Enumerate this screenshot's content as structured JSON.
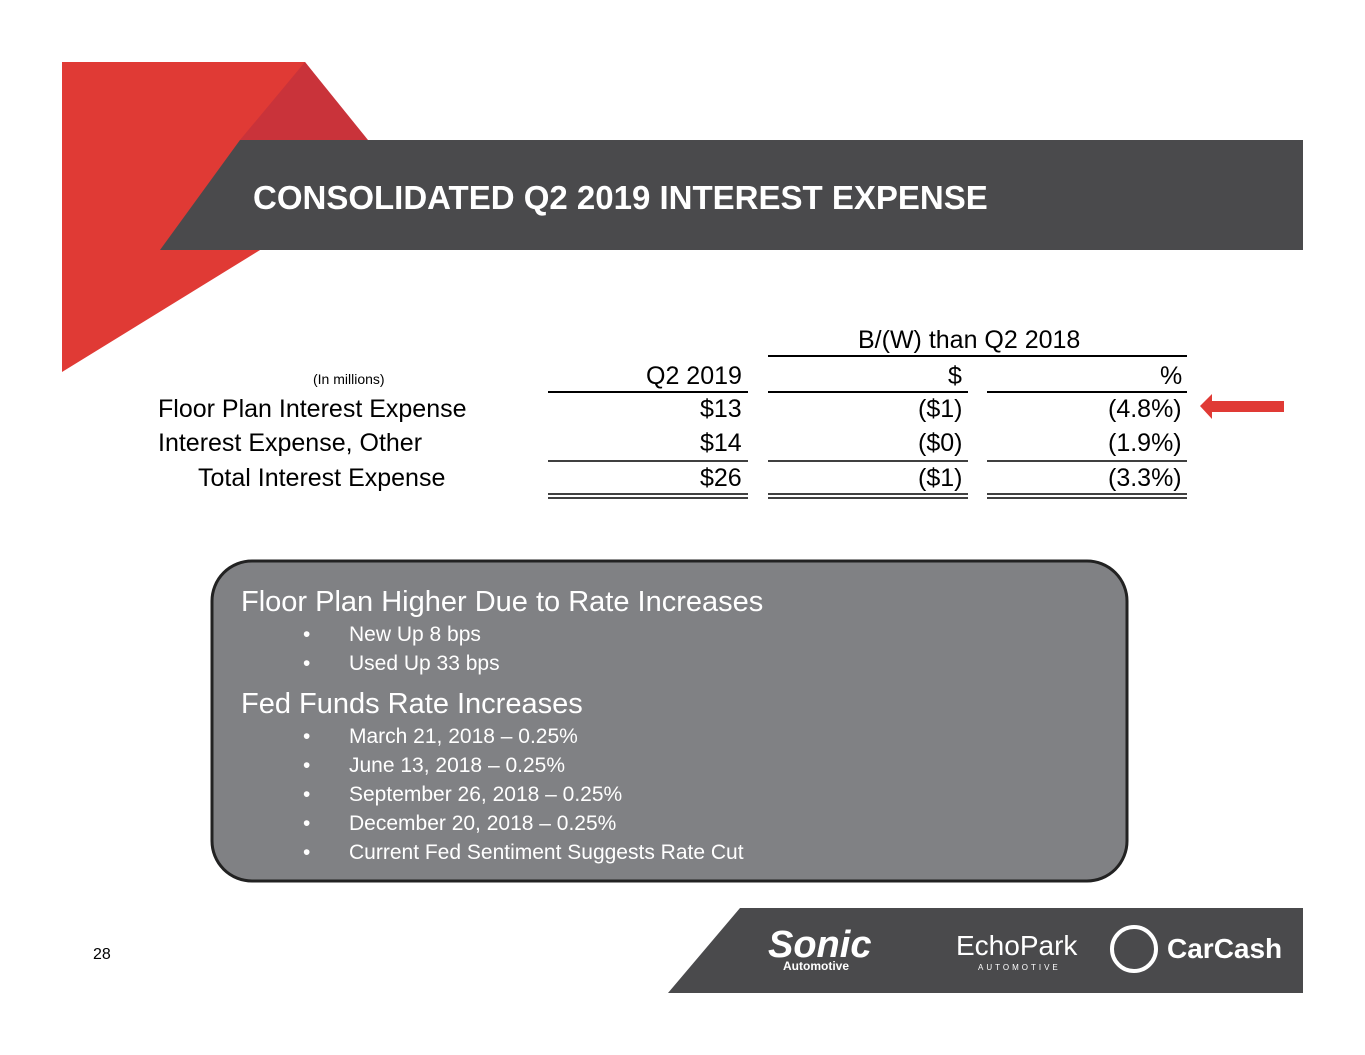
{
  "header": {
    "title": "CONSOLIDATED Q2 2019 INTEREST EXPENSE"
  },
  "table": {
    "group_header": "B/(W) than Q2 2018",
    "units": "(In millions)",
    "columns": [
      "Q2 2019",
      "$",
      "%"
    ],
    "rows": [
      [
        "Floor Plan Interest Expense",
        "$13",
        "($1)",
        "(4.8%)"
      ],
      [
        "Interest Expense, Other",
        "$14",
        "($0)",
        "(1.9%)"
      ],
      [
        "Total Interest Expense",
        "$26",
        "($1)",
        "(3.3%)"
      ]
    ]
  },
  "notes": [
    {
      "heading": "Floor Plan Higher Due to Rate Increases",
      "bullets": [
        "New Up 8 bps",
        "Used Up 33 bps"
      ]
    },
    {
      "heading": "Fed Funds Rate Increases",
      "bullets": [
        "March 21, 2018 – 0.25%",
        "June 13, 2018 – 0.25%",
        "September 26, 2018 – 0.25%",
        "December 20, 2018 – 0.25%",
        "Current Fed Sentiment Suggests Rate Cut"
      ]
    }
  ],
  "footer": {
    "page_number": "28",
    "logos": [
      "Sonic",
      "Automotive",
      "EchoPark",
      "AUTOMOTIVE",
      "CarCash"
    ]
  }
}
